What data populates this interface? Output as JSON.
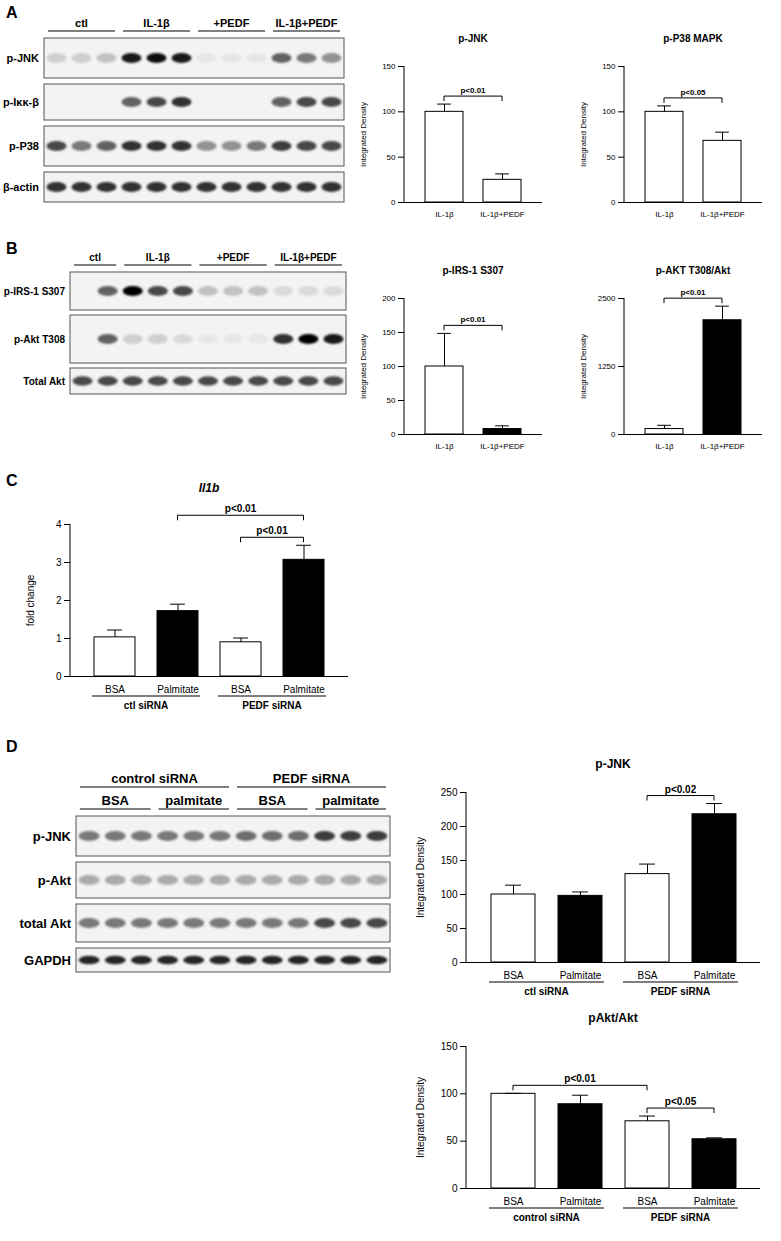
{
  "panel_labels": [
    "A",
    "B",
    "C",
    "D"
  ],
  "blots": [
    {
      "header": [
        [
          {
            "label": "ctl",
            "lanes": 3
          },
          {
            "label": "IL-1β",
            "lanes": 3
          },
          {
            "label": "+PEDF",
            "lanes": 3
          },
          {
            "label": "IL-1β+PEDF",
            "lanes": 3
          }
        ]
      ],
      "rows": [
        {
          "label": "p-JNK",
          "bands": [
            0.15,
            0.15,
            0.2,
            0.9,
            0.95,
            0.9,
            0.05,
            0.05,
            0.05,
            0.6,
            0.5,
            0.4
          ]
        },
        {
          "label": "p-Iκκ-β",
          "bands": [
            0,
            0,
            0,
            0.6,
            0.7,
            0.8,
            0,
            0,
            0,
            0.6,
            0.7,
            0.7
          ]
        },
        {
          "label": "p-P38",
          "bands": [
            0.7,
            0.5,
            0.6,
            0.8,
            0.8,
            0.8,
            0.4,
            0.4,
            0.5,
            0.75,
            0.7,
            0.7
          ]
        },
        {
          "label": "β-actin",
          "bands": [
            0.8,
            0.8,
            0.8,
            0.8,
            0.8,
            0.8,
            0.8,
            0.8,
            0.8,
            0.8,
            0.8,
            0.8
          ]
        }
      ]
    },
    {
      "header": [
        [
          {
            "label": "ctl",
            "lanes": 2
          },
          {
            "label": "IL-1β",
            "lanes": 3
          },
          {
            "label": "+PEDF",
            "lanes": 3
          },
          {
            "label": "IL-1β+PEDF",
            "lanes": 3
          }
        ]
      ],
      "rows": [
        {
          "label": "p-IRS-1 S307",
          "bands": [
            0,
            0.6,
            1,
            0.7,
            0.7,
            0.2,
            0.2,
            0.2,
            0.1,
            0.1,
            0.1
          ]
        },
        {
          "label": "p-Akt T308",
          "bands": [
            0,
            0.6,
            0.15,
            0.15,
            0.1,
            0.05,
            0.05,
            0.05,
            0.8,
            1,
            0.9
          ]
        },
        {
          "label": "Total Akt",
          "bands": [
            0.7,
            0.7,
            0.7,
            0.7,
            0.7,
            0.7,
            0.7,
            0.7,
            0.7,
            0.7,
            0.7
          ]
        }
      ]
    },
    {
      "header": [
        [
          {
            "label": "control siRNA",
            "lanes": 6
          },
          {
            "label": "PEDF siRNA",
            "lanes": 6
          }
        ],
        [
          {
            "label": "BSA",
            "lanes": 3
          },
          {
            "label": "palmitate",
            "lanes": 3
          },
          {
            "label": "BSA",
            "lanes": 3
          },
          {
            "label": "palmitate",
            "lanes": 3
          }
        ]
      ],
      "rows": [
        {
          "label": "p-JNK",
          "bands": [
            0.5,
            0.5,
            0.5,
            0.5,
            0.5,
            0.5,
            0.55,
            0.55,
            0.55,
            0.75,
            0.75,
            0.75
          ]
        },
        {
          "label": "p-Akt",
          "bands": [
            0.3,
            0.3,
            0.3,
            0.3,
            0.3,
            0.3,
            0.3,
            0.3,
            0.3,
            0.3,
            0.3,
            0.3
          ]
        },
        {
          "label": "total Akt",
          "bands": [
            0.5,
            0.5,
            0.5,
            0.5,
            0.5,
            0.5,
            0.5,
            0.5,
            0.5,
            0.7,
            0.7,
            0.7
          ]
        },
        {
          "label": "GAPDH",
          "bands": [
            0.85,
            0.85,
            0.85,
            0.85,
            0.85,
            0.85,
            0.85,
            0.85,
            0.85,
            0.85,
            0.85,
            0.85
          ]
        }
      ]
    }
  ],
  "chart_data": [
    {
      "type": "bar",
      "title": "p-JNK",
      "y_label": "Integrated Density",
      "categories": [
        "IL-1β",
        "IL-1β+PEDF"
      ],
      "values": [
        100,
        25
      ],
      "errors": [
        8,
        6
      ],
      "colors": [
        "#ffffff",
        "#ffffff"
      ],
      "ylim": [
        0,
        150
      ],
      "yticks": [
        0,
        50,
        100,
        150
      ],
      "brackets": [
        {
          "from": 0,
          "to": 1,
          "label": "p<0.01"
        }
      ]
    },
    {
      "type": "bar",
      "title": "p-P38 MAPK",
      "y_label": "Integrated Density",
      "categories": [
        "IL-1β",
        "IL-1β+PEDF"
      ],
      "values": [
        100,
        68
      ],
      "errors": [
        6,
        9
      ],
      "colors": [
        "#ffffff",
        "#ffffff"
      ],
      "ylim": [
        0,
        150
      ],
      "yticks": [
        0,
        50,
        100,
        150
      ],
      "brackets": [
        {
          "from": 0,
          "to": 1,
          "label": "p<0.05"
        }
      ]
    },
    {
      "type": "bar",
      "title": "p-IRS-1 S307",
      "y_label": "Integrated Density",
      "categories": [
        "IL-1β",
        "IL-1β+PEDF"
      ],
      "values": [
        100,
        8
      ],
      "errors": [
        48,
        4
      ],
      "colors": [
        "#ffffff",
        "#000000"
      ],
      "ylim": [
        0,
        200
      ],
      "yticks": [
        0,
        50,
        100,
        150,
        200
      ],
      "brackets": [
        {
          "from": 0,
          "to": 1,
          "label": "p<0.01"
        }
      ]
    },
    {
      "type": "bar",
      "title": "p-AKT T308/Akt",
      "y_label": "Integrated Density",
      "categories": [
        "IL-1β",
        "IL-1β+PEDF"
      ],
      "values": [
        100,
        2100
      ],
      "errors": [
        60,
        250
      ],
      "colors": [
        "#ffffff",
        "#000000"
      ],
      "ylim": [
        0,
        2500
      ],
      "yticks": [
        0,
        1250,
        2500
      ],
      "brackets": [
        {
          "from": 0,
          "to": 1,
          "label": "p<0.01"
        }
      ]
    },
    {
      "type": "bar",
      "title": "Il1b",
      "y_label": "fold change",
      "categories": [
        "BSA",
        "Palmitate",
        "BSA",
        "Palmitate"
      ],
      "values": [
        1.03,
        1.72,
        0.9,
        3.07
      ],
      "errors": [
        0.18,
        0.17,
        0.1,
        0.37
      ],
      "colors": [
        "#ffffff",
        "#000000",
        "#ffffff",
        "#000000"
      ],
      "ylim": [
        0,
        4
      ],
      "yticks": [
        0,
        1,
        2,
        3,
        4
      ],
      "groups": [
        {
          "label": "ctl siRNA",
          "from": 0,
          "to": 1
        },
        {
          "label": "PEDF siRNA",
          "from": 2,
          "to": 3
        }
      ],
      "brackets": [
        {
          "from": 2,
          "to": 3,
          "label": "p<0.01"
        },
        {
          "from": 1,
          "to": 3,
          "label": "p<0.01"
        }
      ]
    },
    {
      "type": "bar",
      "title": "p-JNK",
      "y_label": "Integrated Density",
      "categories": [
        "BSA",
        "Palmitate",
        "BSA",
        "Palmitate"
      ],
      "values": [
        100,
        98,
        130,
        218
      ],
      "errors": [
        13,
        5,
        14,
        15
      ],
      "colors": [
        "#ffffff",
        "#000000",
        "#ffffff",
        "#000000"
      ],
      "ylim": [
        0,
        250
      ],
      "yticks": [
        0,
        50,
        100,
        150,
        200,
        250
      ],
      "groups": [
        {
          "label": "ctl siRNA",
          "from": 0,
          "to": 1
        },
        {
          "label": "PEDF siRNA",
          "from": 2,
          "to": 3
        }
      ],
      "brackets": [
        {
          "from": 2,
          "to": 3,
          "label": "p<0.02"
        }
      ]
    },
    {
      "type": "bar",
      "title": "pAkt/Akt",
      "y_label": "Integrated Density",
      "categories": [
        "BSA",
        "Palmitate",
        "BSA",
        "Palmitate"
      ],
      "values": [
        100,
        89,
        71,
        52
      ],
      "errors": [
        0,
        9,
        5,
        1
      ],
      "colors": [
        "#ffffff",
        "#000000",
        "#ffffff",
        "#000000"
      ],
      "ylim": [
        0,
        150
      ],
      "yticks": [
        0,
        50,
        100,
        150
      ],
      "groups": [
        {
          "label": "control siRNA",
          "from": 0,
          "to": 1
        },
        {
          "label": "PEDF siRNA",
          "from": 2,
          "to": 3
        }
      ],
      "brackets": [
        {
          "from": 2,
          "to": 3,
          "label": "p<0.05"
        },
        {
          "from": 0,
          "to": 2,
          "label": "p<0.01"
        }
      ]
    }
  ]
}
